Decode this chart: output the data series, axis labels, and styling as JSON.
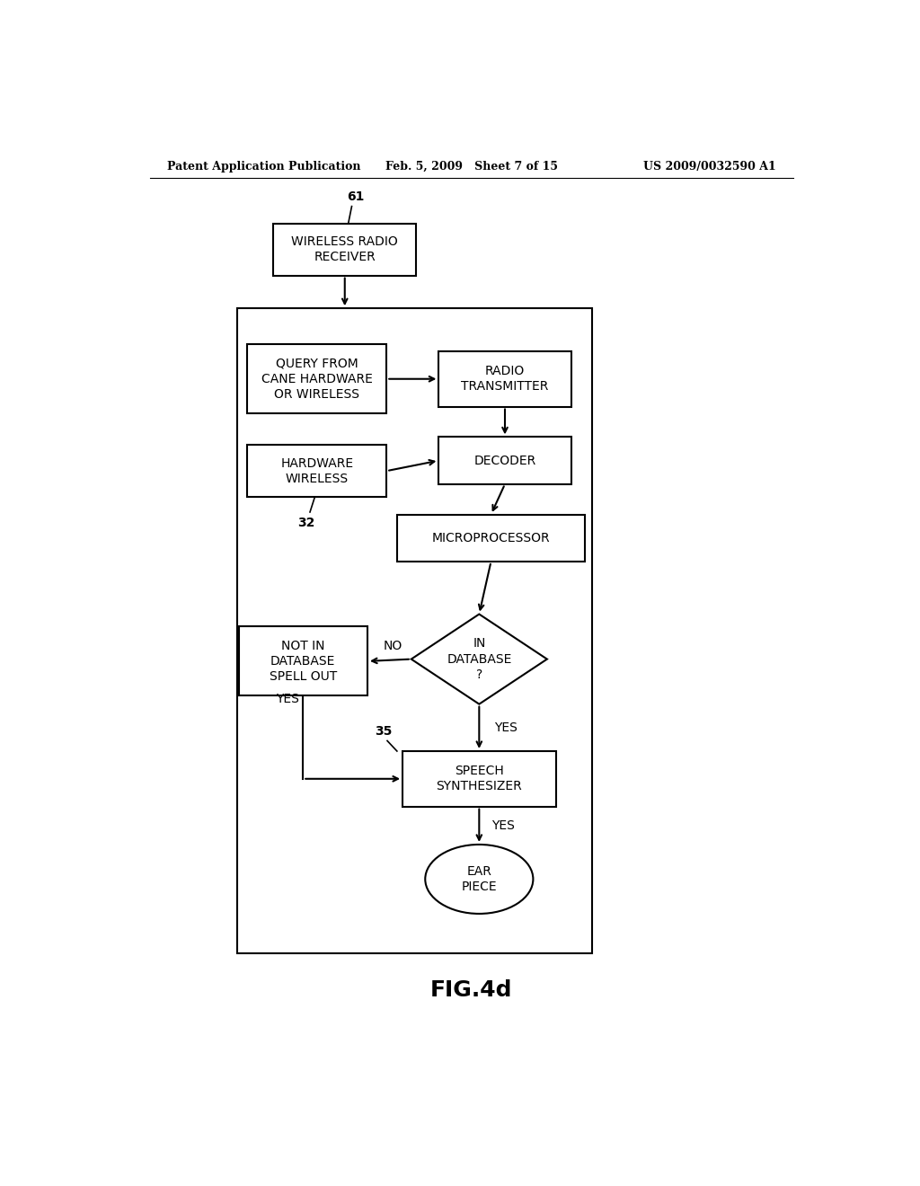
{
  "fig_width": 10.24,
  "fig_height": 13.2,
  "bg_color": "#ffffff",
  "header_left": "Patent Application Publication",
  "header_mid": "Feb. 5, 2009   Sheet 7 of 15",
  "header_right": "US 2009/0032590 A1",
  "caption": "FIG.4d"
}
